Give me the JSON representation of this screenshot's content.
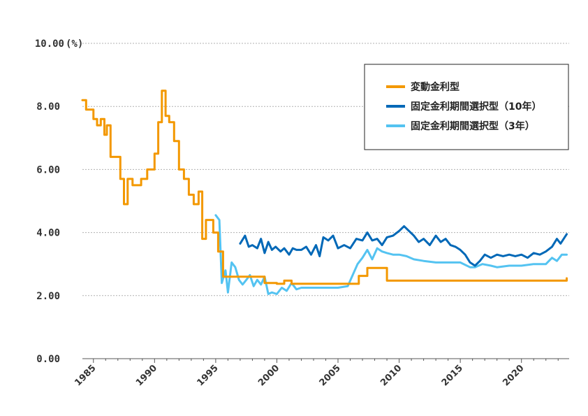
{
  "chart_data": {
    "type": "line",
    "title": "",
    "xlabel": "",
    "ylabel": "",
    "y_unit": "(%)",
    "ylim": [
      0,
      10
    ],
    "xlim": [
      1984.1,
      2023.9
    ],
    "y_ticks": [
      "0.00",
      "2.00",
      "4.00",
      "6.00",
      "8.00",
      "10.00"
    ],
    "x_ticks": [
      "1985",
      "1990",
      "1995",
      "2000",
      "2005",
      "2010",
      "2015",
      "2020"
    ],
    "grid": true,
    "legend_position": "top-right",
    "series": [
      {
        "name": "変動金利型",
        "color": "#f39800",
        "step": true,
        "x": [
          1984.1,
          1984.4,
          1985.0,
          1985.3,
          1985.6,
          1985.9,
          1986.1,
          1986.4,
          1986.6,
          1987.2,
          1987.5,
          1987.8,
          1988.2,
          1988.9,
          1989.4,
          1990.0,
          1990.3,
          1990.6,
          1990.9,
          1991.2,
          1991.6,
          1992.0,
          1992.4,
          1992.8,
          1993.2,
          1993.6,
          1993.9,
          1994.2,
          1994.8,
          1995.2,
          1995.6,
          1995.9,
          1996.5,
          1997.5,
          1998.5,
          1999.0,
          2000.0,
          2000.6,
          2001.2,
          2002.0,
          2003.0,
          2004.0,
          2005.0,
          2006.0,
          2006.7,
          2007.0,
          2007.4,
          2008.5,
          2009.0,
          2010.0,
          2015.0,
          2020.0,
          2023.7
        ],
        "values": [
          8.2,
          7.9,
          7.6,
          7.4,
          7.6,
          7.1,
          7.4,
          6.4,
          6.4,
          5.7,
          4.9,
          5.7,
          5.5,
          5.7,
          6.0,
          6.5,
          7.5,
          8.5,
          7.7,
          7.5,
          6.9,
          6.0,
          5.7,
          5.2,
          4.9,
          5.3,
          3.8,
          4.4,
          4.0,
          3.4,
          2.6,
          2.6,
          2.6,
          2.6,
          2.6,
          2.4,
          2.375,
          2.475,
          2.375,
          2.375,
          2.375,
          2.375,
          2.375,
          2.375,
          2.625,
          2.625,
          2.875,
          2.875,
          2.475,
          2.475,
          2.475,
          2.475,
          2.55
        ]
      },
      {
        "name": "固定金利期間選択型（10年）",
        "color": "#0068b7",
        "step": false,
        "x": [
          1997.0,
          1997.4,
          1997.7,
          1998.0,
          1998.4,
          1998.7,
          1999.0,
          1999.3,
          1999.6,
          1999.9,
          2000.3,
          2000.6,
          2001.0,
          2001.3,
          2001.6,
          2002.0,
          2002.4,
          2002.8,
          2003.2,
          2003.5,
          2003.8,
          2004.2,
          2004.6,
          2005.0,
          2005.5,
          2006.0,
          2006.5,
          2007.0,
          2007.4,
          2007.8,
          2008.2,
          2008.6,
          2009.0,
          2009.5,
          2010.0,
          2010.4,
          2010.8,
          2011.2,
          2011.6,
          2012.0,
          2012.5,
          2013.0,
          2013.4,
          2013.8,
          2014.2,
          2014.6,
          2015.0,
          2015.4,
          2015.8,
          2016.2,
          2016.6,
          2017.0,
          2017.5,
          2018.0,
          2018.5,
          2019.0,
          2019.5,
          2020.0,
          2020.5,
          2021.0,
          2021.5,
          2022.0,
          2022.5,
          2022.9,
          2023.2,
          2023.7
        ],
        "values": [
          3.65,
          3.9,
          3.55,
          3.6,
          3.5,
          3.8,
          3.35,
          3.7,
          3.45,
          3.55,
          3.4,
          3.5,
          3.3,
          3.5,
          3.45,
          3.45,
          3.55,
          3.3,
          3.6,
          3.25,
          3.85,
          3.75,
          3.9,
          3.5,
          3.6,
          3.5,
          3.8,
          3.75,
          4.0,
          3.75,
          3.8,
          3.6,
          3.85,
          3.9,
          4.05,
          4.2,
          4.05,
          3.9,
          3.7,
          3.8,
          3.6,
          3.9,
          3.7,
          3.8,
          3.6,
          3.55,
          3.45,
          3.3,
          3.05,
          2.95,
          3.1,
          3.3,
          3.2,
          3.3,
          3.25,
          3.3,
          3.25,
          3.3,
          3.2,
          3.35,
          3.3,
          3.4,
          3.55,
          3.8,
          3.65,
          3.95
        ]
      },
      {
        "name": "固定金利期間選択型（3年）",
        "color": "#54c3f1",
        "step": false,
        "x": [
          1995.0,
          1995.3,
          1995.5,
          1995.8,
          1996.0,
          1996.3,
          1996.6,
          1996.9,
          1997.2,
          1997.5,
          1997.8,
          1998.1,
          1998.4,
          1998.7,
          1999.0,
          1999.3,
          1999.6,
          2000.0,
          2000.4,
          2000.8,
          2001.2,
          2001.6,
          2002.0,
          2003.0,
          2004.0,
          2005.0,
          2005.8,
          2006.2,
          2006.6,
          2007.0,
          2007.4,
          2007.8,
          2008.2,
          2008.6,
          2009.0,
          2009.5,
          2010.0,
          2010.6,
          2011.2,
          2012.0,
          2013.0,
          2014.0,
          2015.0,
          2015.8,
          2016.2,
          2016.8,
          2017.5,
          2018.0,
          2019.0,
          2020.0,
          2021.0,
          2021.5,
          2022.0,
          2022.5,
          2022.9,
          2023.3,
          2023.7
        ],
        "values": [
          4.55,
          4.4,
          2.4,
          2.8,
          2.1,
          3.05,
          2.9,
          2.5,
          2.35,
          2.5,
          2.65,
          2.3,
          2.5,
          2.35,
          2.6,
          2.05,
          2.1,
          2.05,
          2.25,
          2.15,
          2.4,
          2.2,
          2.25,
          2.25,
          2.25,
          2.25,
          2.3,
          2.65,
          3.0,
          3.2,
          3.45,
          3.15,
          3.5,
          3.4,
          3.35,
          3.3,
          3.3,
          3.25,
          3.15,
          3.1,
          3.05,
          3.05,
          3.05,
          2.9,
          2.9,
          3.0,
          2.95,
          2.9,
          2.95,
          2.95,
          3.0,
          3.0,
          3.0,
          3.2,
          3.1,
          3.3,
          3.3
        ]
      }
    ]
  }
}
